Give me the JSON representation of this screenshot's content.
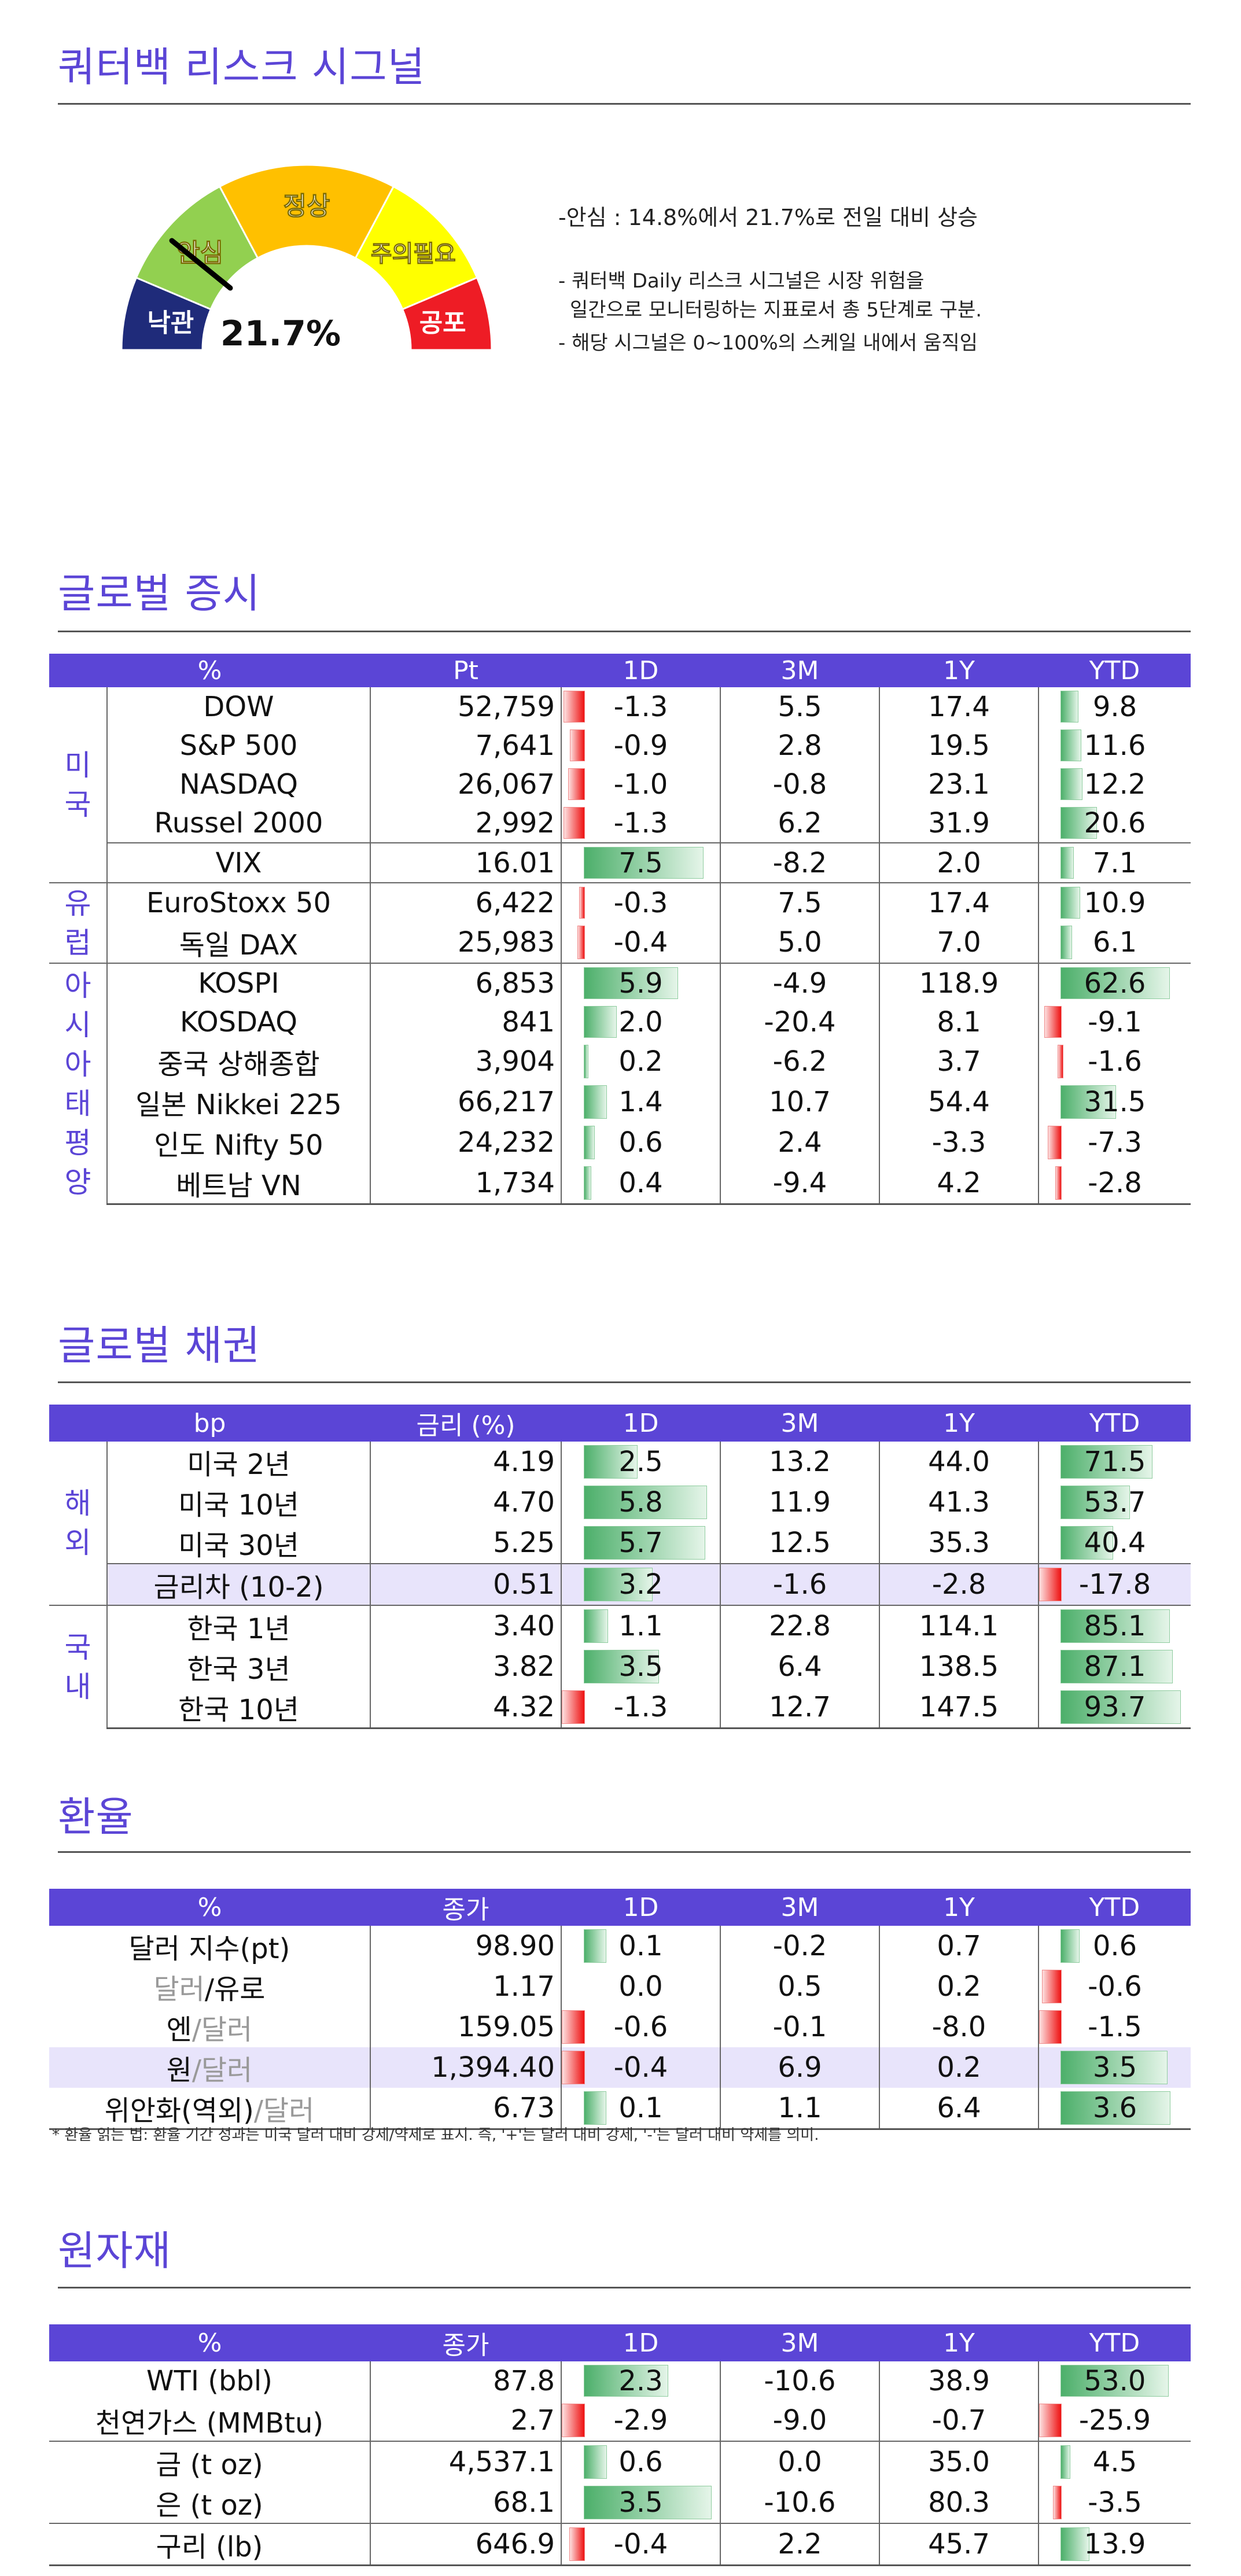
{
  "risk": {
    "title": "쿼터백 리스크 시그널",
    "value_label": "21.7%",
    "value": 21.7,
    "zones": [
      "낙관",
      "안심",
      "정상",
      "주의필요",
      "공포"
    ],
    "zone_colors": [
      "#1f2b7a",
      "#92d050",
      "#ffc000",
      "#ffff00",
      "#ee1c25"
    ],
    "headline": "-안심 : 14.8%에서 21.7%로 전일 대비 상승",
    "note1": "- 쿼터백 Daily 리스크 시그널은 시장 위험을",
    "note2": "  일간으로 모니터링하는 지표로서 총 5단계로 구분.",
    "note3": "- 해당 시그널은 0~100%의 스케일 내에서 움직임"
  },
  "stocks": {
    "title": "글로벌 증시",
    "headers": [
      "%",
      "Pt",
      "1D",
      "3M",
      "1Y",
      "YTD"
    ],
    "groups": [
      {
        "label": "미\n국",
        "rows": [
          {
            "name": "DOW",
            "pt": "52,759",
            "d1": "-1.3",
            "m3": "5.5",
            "y1": "17.4",
            "ytd": "9.8"
          },
          {
            "name": "S&P 500",
            "pt": "7,641",
            "d1": "-0.9",
            "m3": "2.8",
            "y1": "19.5",
            "ytd": "11.6"
          },
          {
            "name": "NASDAQ",
            "pt": "26,067",
            "d1": "-1.0",
            "m3": "-0.8",
            "y1": "23.1",
            "ytd": "12.2"
          },
          {
            "name": "Russel 2000",
            "pt": "2,992",
            "d1": "-1.3",
            "m3": "6.2",
            "y1": "31.9",
            "ytd": "20.6"
          },
          {
            "name": "VIX",
            "pt": "16.01",
            "d1": "7.5",
            "m3": "-8.2",
            "y1": "2.0",
            "ytd": "7.1"
          }
        ]
      },
      {
        "label": "유\n럽",
        "rows": [
          {
            "name": "EuroStoxx 50",
            "pt": "6,422",
            "d1": "-0.3",
            "m3": "7.5",
            "y1": "17.4",
            "ytd": "10.9"
          },
          {
            "name": "독일 DAX",
            "pt": "25,983",
            "d1": "-0.4",
            "m3": "5.0",
            "y1": "7.0",
            "ytd": "6.1"
          }
        ]
      },
      {
        "label": "아\n시\n아\n태\n평\n양",
        "rows": [
          {
            "name": "KOSPI",
            "pt": "6,853",
            "d1": "5.9",
            "m3": "-4.9",
            "y1": "118.9",
            "ytd": "62.6"
          },
          {
            "name": "KOSDAQ",
            "pt": "841",
            "d1": "2.0",
            "m3": "-20.4",
            "y1": "8.1",
            "ytd": "-9.1"
          },
          {
            "name": "중국 상해종합",
            "pt": "3,904",
            "d1": "0.2",
            "m3": "-6.2",
            "y1": "3.7",
            "ytd": "-1.6"
          },
          {
            "name": "일본 Nikkei 225",
            "pt": "66,217",
            "d1": "1.4",
            "m3": "10.7",
            "y1": "54.4",
            "ytd": "31.5"
          },
          {
            "name": "인도 Nifty 50",
            "pt": "24,232",
            "d1": "0.6",
            "m3": "2.4",
            "y1": "-3.3",
            "ytd": "-7.3"
          },
          {
            "name": "베트남 VN",
            "pt": "1,734",
            "d1": "0.4",
            "m3": "-9.4",
            "y1": "4.2",
            "ytd": "-2.8"
          }
        ]
      }
    ]
  },
  "bonds": {
    "title": "글로벌 채권",
    "headers": [
      "bp",
      "금리 (%)",
      "1D",
      "3M",
      "1Y",
      "YTD"
    ],
    "groups": [
      {
        "label": "해\n외",
        "rows": [
          {
            "name": "미국 2년",
            "pt": "4.19",
            "d1": "2.5",
            "m3": "13.2",
            "y1": "44.0",
            "ytd": "71.5"
          },
          {
            "name": "미국 10년",
            "pt": "4.70",
            "d1": "5.8",
            "m3": "11.9",
            "y1": "41.3",
            "ytd": "53.7"
          },
          {
            "name": "미국 30년",
            "pt": "5.25",
            "d1": "5.7",
            "m3": "12.5",
            "y1": "35.3",
            "ytd": "40.4"
          },
          {
            "name": "금리차 (10-2)",
            "pt": "0.51",
            "d1": "3.2",
            "m3": "-1.6",
            "y1": "-2.8",
            "ytd": "-17.8",
            "hl": true
          }
        ]
      },
      {
        "label": "국\n내",
        "rows": [
          {
            "name": "한국 1년",
            "pt": "3.40",
            "d1": "1.1",
            "m3": "22.8",
            "y1": "114.1",
            "ytd": "85.1"
          },
          {
            "name": "한국 3년",
            "pt": "3.82",
            "d1": "3.5",
            "m3": "6.4",
            "y1": "138.5",
            "ytd": "87.1"
          },
          {
            "name": "한국 10년",
            "pt": "4.32",
            "d1": "-1.3",
            "m3": "12.7",
            "y1": "147.5",
            "ytd": "93.7"
          }
        ]
      }
    ]
  },
  "fx": {
    "title": "환율",
    "headers": [
      "%",
      "종가",
      "1D",
      "3M",
      "1Y",
      "YTD"
    ],
    "rows": [
      {
        "a": "달러 지수(pt)",
        "b": "",
        "c": "",
        "pt": "98.90",
        "d1": "0.1",
        "m3": "-0.2",
        "y1": "0.7",
        "ytd": "0.6"
      },
      {
        "a": "",
        "b": "달러",
        "c": "/유로",
        "pt": "1.17",
        "d1": "0.0",
        "m3": "0.5",
        "y1": "0.2",
        "ytd": "-0.6"
      },
      {
        "a": "엔",
        "b": "/달러",
        "c": "",
        "pt": "159.05",
        "d1": "-0.6",
        "m3": "-0.1",
        "y1": "-8.0",
        "ytd": "-1.5"
      },
      {
        "a": "원",
        "b": "/달러",
        "c": "",
        "pt": "1,394.40",
        "d1": "-0.4",
        "m3": "6.9",
        "y1": "0.2",
        "ytd": "3.5",
        "hl": true
      },
      {
        "a": "위안화(역외)",
        "b": "/달러",
        "c": "",
        "pt": "6.73",
        "d1": "0.1",
        "m3": "1.1",
        "y1": "6.4",
        "ytd": "3.6"
      }
    ],
    "footnote": "* 환율 읽는 법: 환율 기간 성과는 미국 달러 대비 강세/약세로 표시. 즉, '+'는 달러 대비 강세, '-'는 달러 대비 약세를 의미."
  },
  "commodities": {
    "title": "원자재",
    "headers": [
      "%",
      "종가",
      "1D",
      "3M",
      "1Y",
      "YTD"
    ],
    "rows": [
      {
        "name": "WTI (bbl)",
        "pt": "87.8",
        "d1": "2.3",
        "m3": "-10.6",
        "y1": "38.9",
        "ytd": "53.0"
      },
      {
        "name": "천연가스 (MMBtu)",
        "pt": "2.7",
        "d1": "-2.9",
        "m3": "-9.0",
        "y1": "-0.7",
        "ytd": "-25.9"
      },
      {
        "name": "금 (t oz)",
        "pt": "4,537.1",
        "d1": "0.6",
        "m3": "0.0",
        "y1": "35.0",
        "ytd": "4.5"
      },
      {
        "name": "은 (t oz)",
        "pt": "68.1",
        "d1": "3.5",
        "m3": "-10.6",
        "y1": "80.3",
        "ytd": "-3.5"
      },
      {
        "name": "구리 (lb)",
        "pt": "646.9",
        "d1": "-0.4",
        "m3": "2.2",
        "y1": "45.7",
        "ytd": "13.9"
      }
    ]
  }
}
